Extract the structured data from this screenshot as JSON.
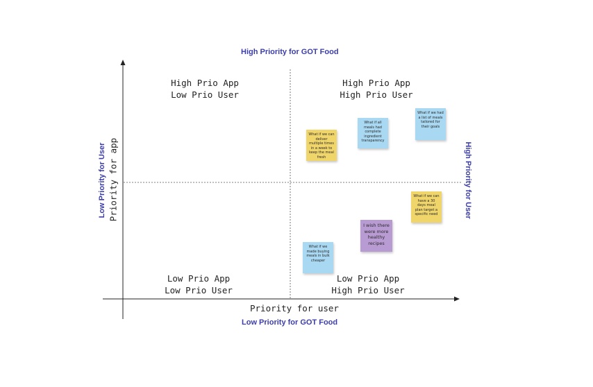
{
  "labels": {
    "top": "High Priority for GOT Food",
    "bottom": "Low Priority for GOT Food",
    "left": "Low Priority for User",
    "right": "High Priority for User"
  },
  "axes": {
    "x_title": "Priority for user",
    "y_title": "Priority for app"
  },
  "quadrants": {
    "top_left": {
      "line1": "High Prio App",
      "line2": "Low Prio User"
    },
    "top_right": {
      "line1": "High Prio App",
      "line2": "High Prio User"
    },
    "bottom_left": {
      "line1": "Low Prio App",
      "line2": "Low Prio User"
    },
    "bottom_right": {
      "line1": "Low Prio App",
      "line2": "High Prio User"
    }
  },
  "notes": [
    {
      "text": "What if we can deliver multiple times in a week to keep the meal fresh",
      "color": "#f0d56b"
    },
    {
      "text": "What if all meals had complete ingredient transparency",
      "color": "#a9d8f2"
    },
    {
      "text": "What if we had a list of meals tailored for their goals",
      "color": "#a9d8f2"
    },
    {
      "text": "What if we can have a 30 days meal plan target a specific need",
      "color": "#f0d56b"
    },
    {
      "text": "I wish there were more healthy recipes",
      "color": "#b99bd3"
    },
    {
      "text": "What if we made buying meals in bulk cheaper",
      "color": "#a9d8f2"
    }
  ],
  "colors": {
    "edge_label": "#3b3ea8",
    "axis": "#222222",
    "divider": "#555555"
  }
}
